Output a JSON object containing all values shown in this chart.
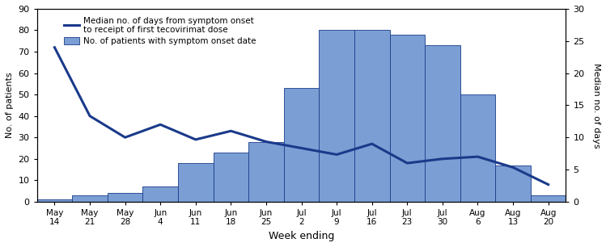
{
  "weeks": [
    "May\n14",
    "May\n21",
    "May\n28",
    "Jun\n4",
    "Jun\n11",
    "Jun\n18",
    "Jun\n25",
    "Jul\n2",
    "Jul\n9",
    "Jul\n16",
    "Jul\n23",
    "Jul\n30",
    "Aug\n6",
    "Aug\n13",
    "Aug\n20"
  ],
  "bar_values": [
    1,
    3,
    4,
    7,
    18,
    23,
    28,
    53,
    80,
    80,
    78,
    73,
    50,
    17,
    3
  ],
  "line_values_left": [
    72,
    40,
    30,
    36,
    29,
    33,
    28,
    25,
    22,
    27,
    18,
    20,
    21,
    16,
    8
  ],
  "bar_color": "#7b9fd4",
  "bar_edgecolor": "#1a3a8a",
  "line_color": "#1a3a8a",
  "left_ylim": [
    0,
    90
  ],
  "right_ylim": [
    0,
    30
  ],
  "left_yticks": [
    0,
    10,
    20,
    30,
    40,
    50,
    60,
    70,
    80,
    90
  ],
  "right_yticks": [
    0,
    5,
    10,
    15,
    20,
    25,
    30
  ],
  "left_ylabel": "No. of patients",
  "right_ylabel": "Median no. of days",
  "xlabel": "Week ending",
  "legend_line": "Median no. of days from symptom onset\nto receipt of first tecovirimat dose",
  "legend_bar": "No. of patients with symptom onset date"
}
